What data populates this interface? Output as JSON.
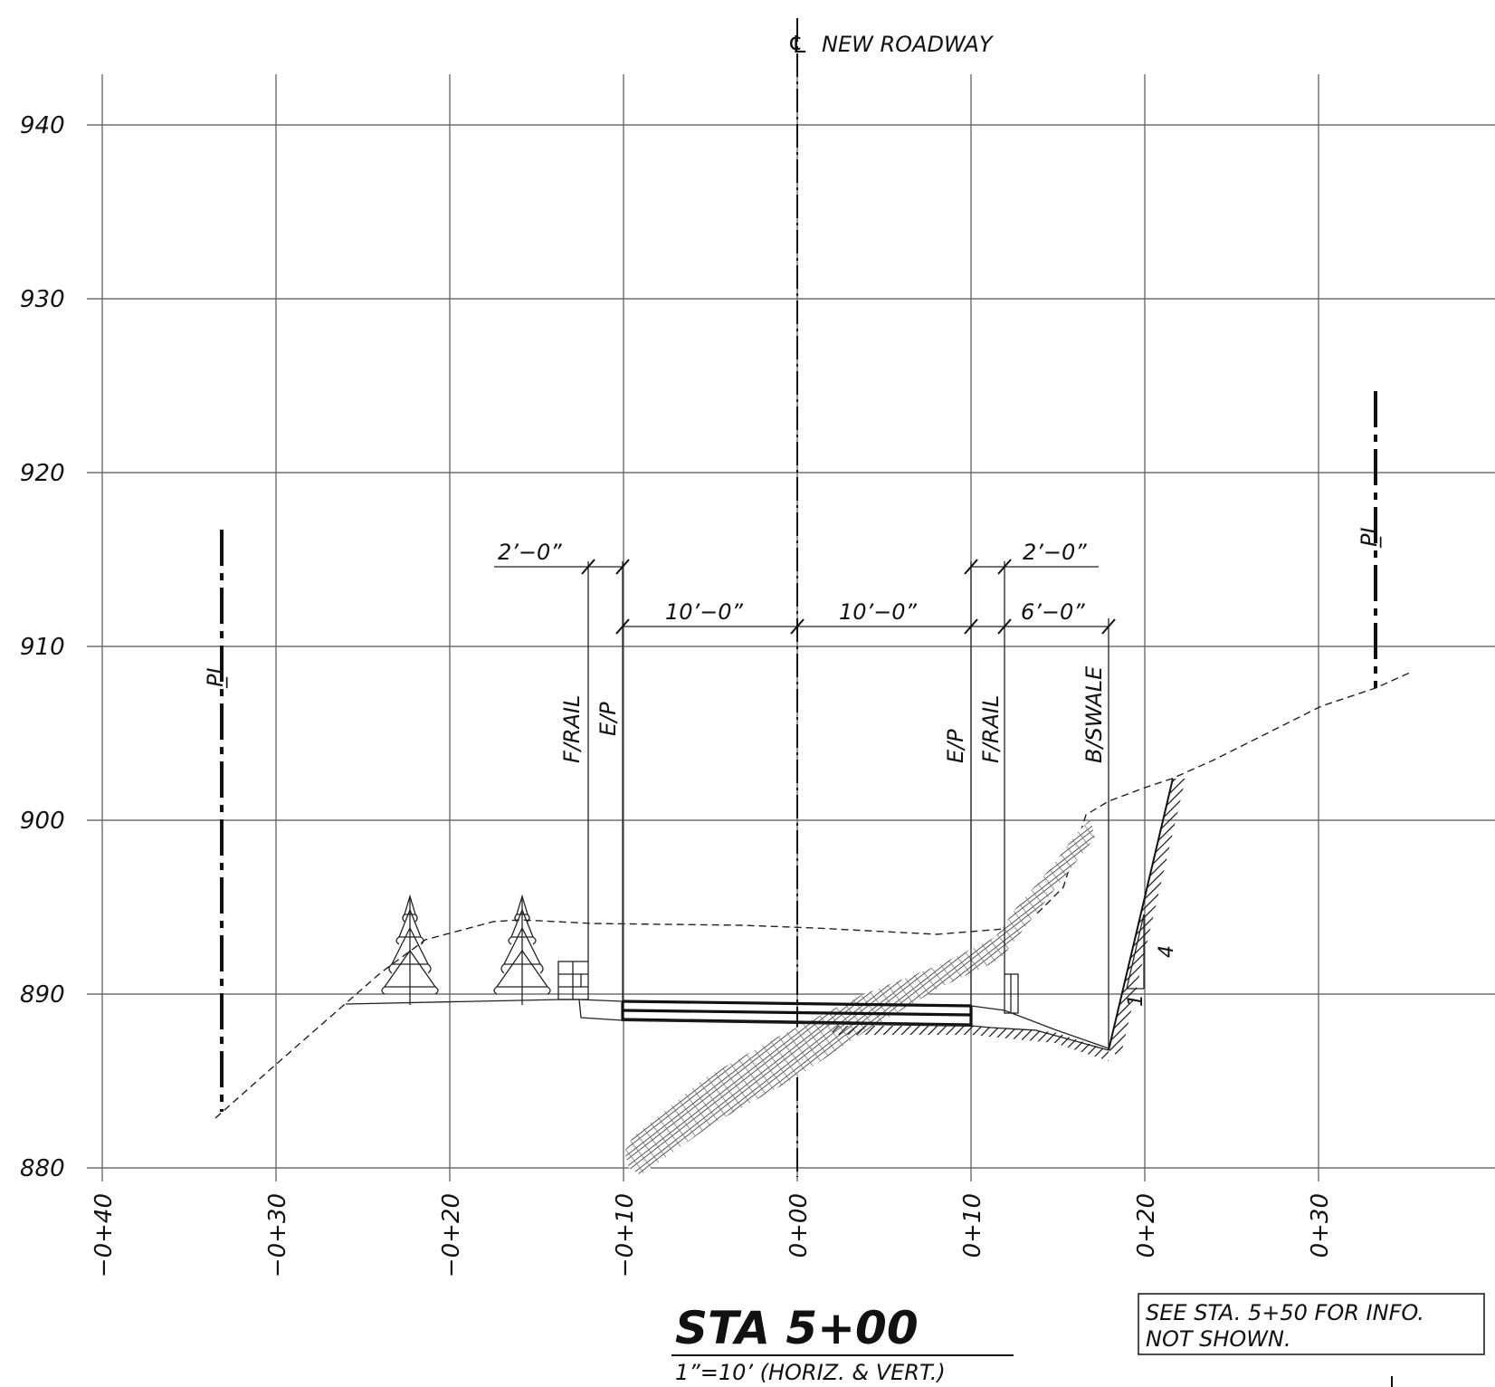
{
  "centerline_label": "NEW ROADWAY",
  "centerline_symbol": "℄",
  "property_line_symbol": "P̲L",
  "y_axis": {
    "ticks": [
      "940",
      "930",
      "920",
      "910",
      "900",
      "890",
      "880"
    ],
    "values": [
      940,
      930,
      920,
      910,
      900,
      890,
      880
    ]
  },
  "x_axis": {
    "ticks": [
      "−0+40",
      "−0+30",
      "−0+20",
      "−0+10",
      "0+00",
      "0+10",
      "0+20",
      "0+30"
    ],
    "values": [
      -40,
      -30,
      -20,
      -10,
      0,
      10,
      20,
      30
    ]
  },
  "dimensions": {
    "left_rail": "2’−0”",
    "left_lane": "10’−0”",
    "right_lane": "10’−0”",
    "right_rail": "2’−0”",
    "right_shoulder": "6’−0”"
  },
  "callouts": {
    "f_rail_left": "F/RAIL",
    "e_p_left": "E/P",
    "e_p_right": "E/P",
    "f_rail_right": "F/RAIL",
    "b_swale": "B/SWALE"
  },
  "slope": {
    "rise": "4",
    "run": "1"
  },
  "title": {
    "station": "STA 5+00",
    "scale": "1”=10’   (HORIZ. & VERT.)"
  },
  "note": {
    "line1": "SEE STA. 5+50 FOR INFO.",
    "line2": "NOT SHOWN."
  }
}
